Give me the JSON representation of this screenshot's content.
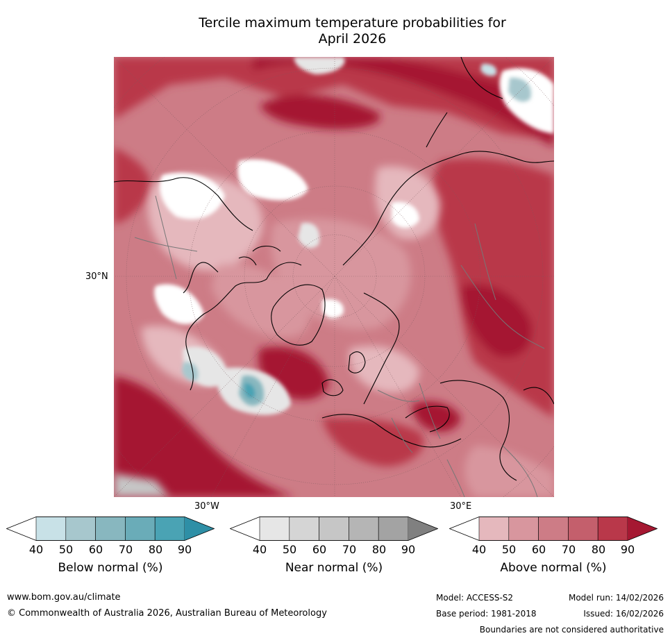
{
  "title_line1": "Tercile maximum temperature probabilities for",
  "title_line2": "April 2026",
  "map": {
    "lat_label": "30°N",
    "lon_label_left": "30°W",
    "lon_label_right": "30°E"
  },
  "colorbars": [
    {
      "label": "Below normal (%)",
      "ticks": [
        "40",
        "50",
        "60",
        "70",
        "80",
        "90"
      ],
      "colors": [
        "#ffffff",
        "#c8e1e7",
        "#a7c7cd",
        "#88b7bf",
        "#6aacb8",
        "#4aa3b4",
        "#2e8fa6"
      ]
    },
    {
      "label": "Near normal (%)",
      "ticks": [
        "40",
        "50",
        "60",
        "70",
        "80",
        "90"
      ],
      "colors": [
        "#ffffff",
        "#e6e6e6",
        "#d5d5d5",
        "#c6c6c6",
        "#b5b5b5",
        "#a3a3a3",
        "#808080"
      ]
    },
    {
      "label": "Above normal (%)",
      "ticks": [
        "40",
        "50",
        "60",
        "70",
        "80",
        "90"
      ],
      "colors": [
        "#ffffff",
        "#e5b8bd",
        "#d8969e",
        "#cd7c86",
        "#c45f6c",
        "#b9384a",
        "#a51832"
      ]
    }
  ],
  "footer": {
    "website": "www.bom.gov.au/climate",
    "copyright": "© Commonwealth of Australia 2026, Australian Bureau of Meteorology",
    "model": "Model: ACCESS-S2",
    "base_period": "Base period: 1981-2018",
    "model_run": "Model run: 14/02/2026",
    "issued": "Issued: 16/02/2026",
    "disclaimer": "Boundaries are not considered authoritative"
  }
}
